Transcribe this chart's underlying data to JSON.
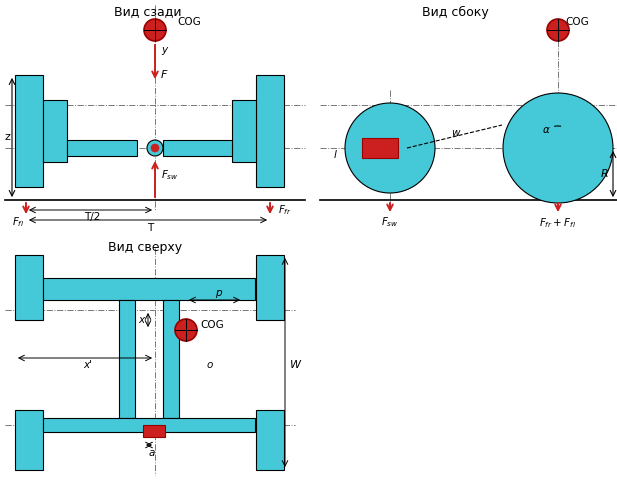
{
  "bg_color": "#ffffff",
  "cyan": "#45c8d8",
  "red_fill": "#cc2020",
  "black": "#000000",
  "gray": "#888888",
  "title_rear": "Вид сзади",
  "title_side": "Вид сбоку",
  "title_top": "Вид сверху"
}
